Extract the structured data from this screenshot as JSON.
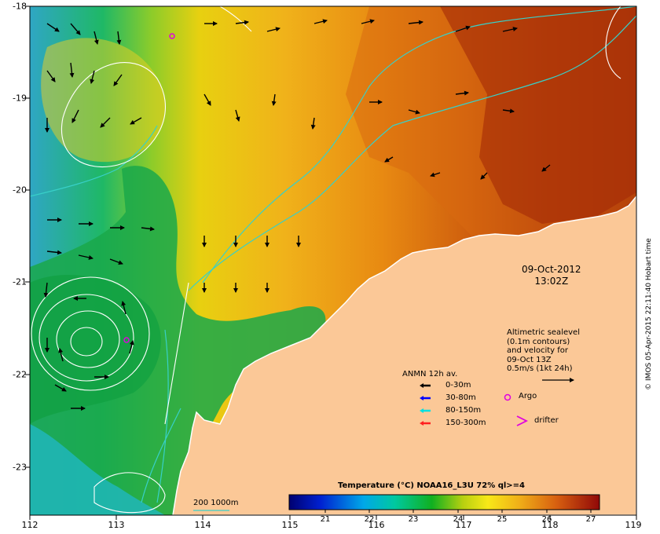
{
  "map": {
    "x_ticks": [
      "112",
      "113",
      "114",
      "115",
      "116",
      "117",
      "118",
      "119"
    ],
    "y_ticks": [
      "-18",
      "-19",
      "-20",
      "-21",
      "-22",
      "-23"
    ],
    "date_line1": "09-Oct-2012",
    "date_line2": "13:02Z",
    "altimetry_lines": [
      "Altimetric sealevel",
      "(0.1m contours)",
      "and velocity for",
      "09-Oct 13Z",
      "0.5m/s (1kt 24h)"
    ],
    "anmn_title": "ANMN 12h av.",
    "anmn_items": [
      {
        "label": "0-30m",
        "color": "#000000"
      },
      {
        "label": "30-80m",
        "color": "#0000ff"
      },
      {
        "label": "80-150m",
        "color": "#00e0e0"
      },
      {
        "label": "150-300m",
        "color": "#ff2020"
      }
    ],
    "argo_label": "Argo",
    "drifter_label": "drifter",
    "credit": "© IMOS 05-Apr-2015 22:11:40 Hobart time",
    "isobath_label": "200  1000m",
    "colorbar": {
      "title": "Temperature (°C) NOAA16_L3U 72% ql>=4",
      "ticks": [
        "21",
        "22",
        "23",
        "24",
        "25",
        "26",
        "27"
      ],
      "range": [
        20.2,
        27.2
      ]
    },
    "colors": {
      "land": "#fbc897",
      "argo": "#e000e0",
      "isobath": "#38d0c8",
      "contour": "#ffffff"
    }
  }
}
